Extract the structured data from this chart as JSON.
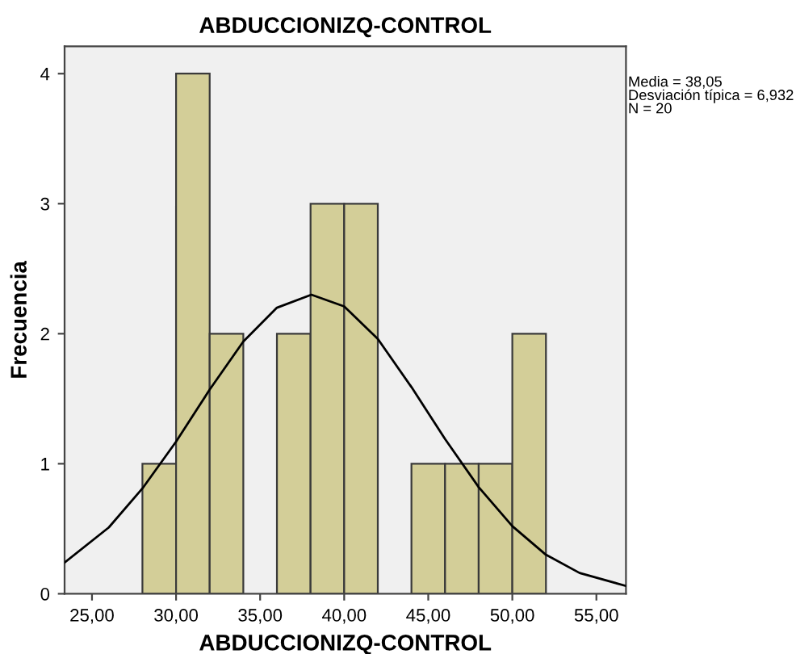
{
  "chart_data": {
    "type": "histogram",
    "title": "ABDUCCIONIZQ-CONTROL",
    "xlabel": "ABDUCCIONIZQ-CONTROL",
    "ylabel": "Frecuencia",
    "bins": [
      28,
      30,
      32,
      34,
      36,
      38,
      40,
      42,
      44,
      46,
      48,
      50,
      52
    ],
    "values": [
      1,
      4,
      2,
      0,
      2,
      3,
      3,
      0,
      1,
      1,
      1,
      2
    ],
    "color": "#d3ce98",
    "series": [
      {
        "type": "line",
        "color": "#000000",
        "x": [
          23.37,
          26,
          28,
          30,
          32,
          34,
          36,
          38.05,
          40,
          42,
          44,
          46,
          48,
          50,
          52,
          54,
          56.76
        ],
        "values": [
          0.24,
          0.51,
          0.81,
          1.17,
          1.57,
          1.94,
          2.2,
          2.3,
          2.21,
          1.96,
          1.59,
          1.19,
          0.82,
          0.52,
          0.3,
          0.16,
          0.06
        ]
      }
    ],
    "xlim": [
      23.37,
      56.76
    ],
    "xticks": [
      {
        "value": 25,
        "label": "25,00"
      },
      {
        "value": 30,
        "label": "30,00"
      },
      {
        "value": 35,
        "label": "35,00"
      },
      {
        "value": 40,
        "label": "40,00"
      },
      {
        "value": 45,
        "label": "45,00"
      },
      {
        "value": 50,
        "label": "50,00"
      },
      {
        "value": 55,
        "label": "55,00"
      }
    ],
    "ylim": [
      0,
      4.21
    ],
    "yticks": [
      0,
      1,
      2,
      3,
      4
    ],
    "annotations": [
      "Media = 38,05\nDesviación típica = 6,932\nN = 20"
    ]
  }
}
